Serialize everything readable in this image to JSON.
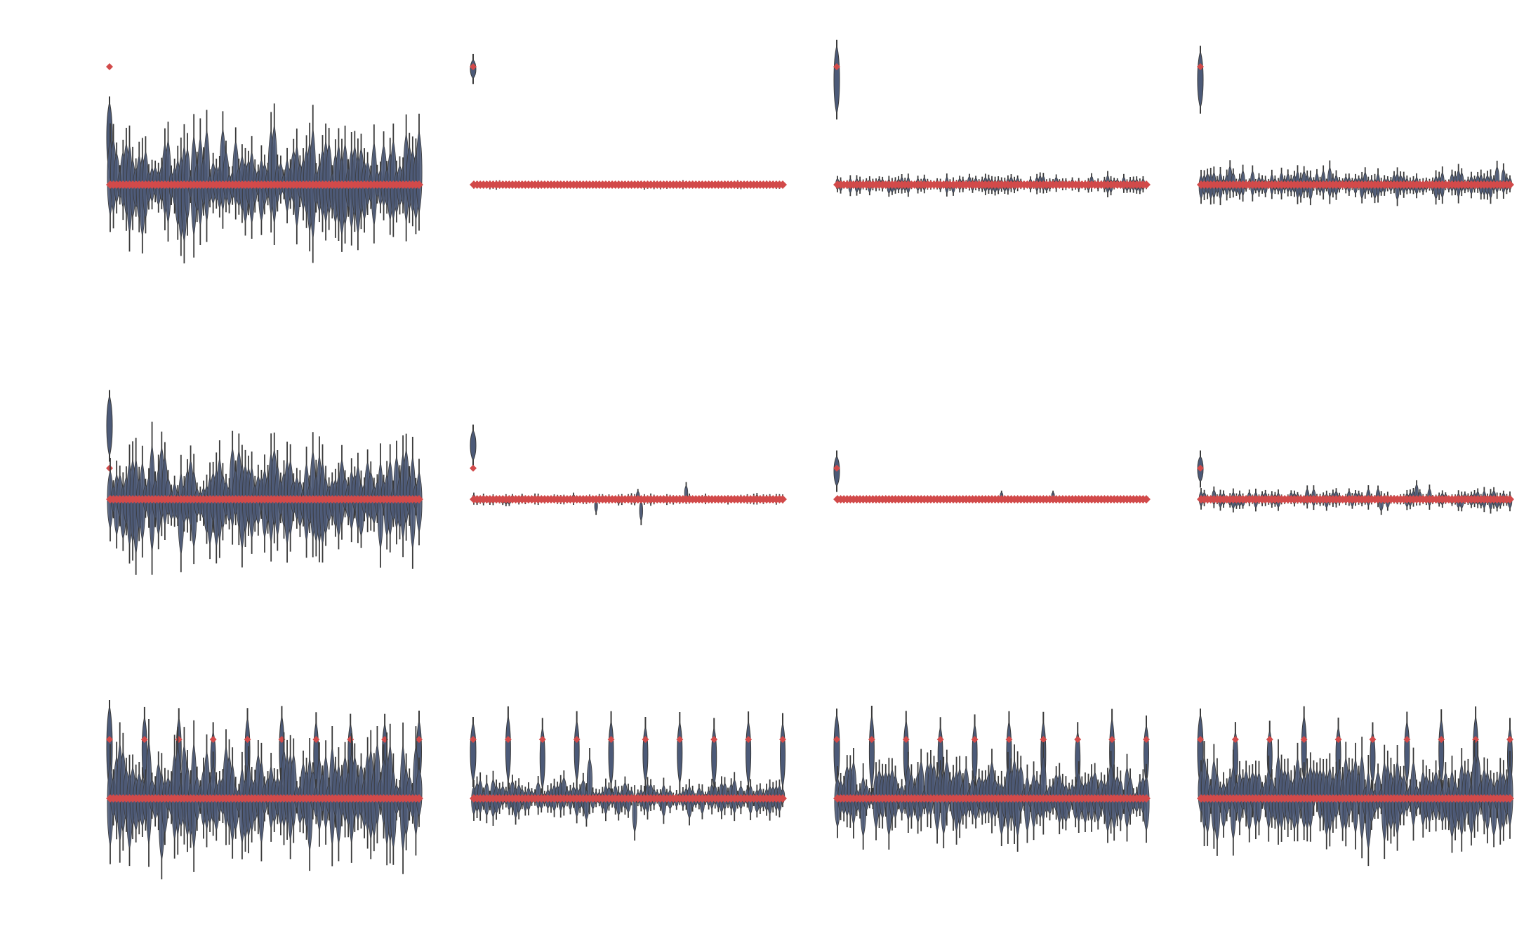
{
  "colors": {
    "violin": "#4c5a78",
    "violin_edge": "#3a3a3a",
    "marker": "#d24a4a"
  },
  "chart_data": [
    {
      "type": "violin",
      "panel": "r1c1",
      "n_positions": 97,
      "amplitude": 0.48,
      "first_marker": 1.0,
      "first_violin": [
        0.1,
        0.7
      ],
      "spikes": [],
      "rise": [],
      "ylim": [
        -1.0,
        1.0
      ]
    },
    {
      "type": "violin",
      "panel": "r1c2",
      "n_positions": 97,
      "amplitude": 0.03,
      "first_marker": 1.0,
      "first_violin": [
        0.9,
        1.06
      ],
      "spikes": [],
      "rise": [],
      "ylim": [
        -1.0,
        1.0
      ]
    },
    {
      "type": "violin",
      "panel": "r1c3",
      "n_positions": 97,
      "amplitude": 0.08,
      "first_marker": 1.0,
      "first_violin": [
        0.6,
        1.18
      ],
      "spikes": [],
      "rise": [],
      "ylim": [
        -1.0,
        1.0
      ]
    },
    {
      "type": "violin",
      "panel": "r1c4",
      "n_positions": 97,
      "amplitude": 0.15,
      "first_marker": 1.0,
      "first_violin": [
        0.65,
        1.13
      ],
      "spikes": [],
      "rise": [],
      "ylim": [
        -1.0,
        1.0
      ]
    },
    {
      "type": "violin",
      "panel": "r2c1",
      "n_positions": 97,
      "amplitude": 0.65,
      "first_marker": 0.36,
      "first_violin": [
        0.5,
        1.2
      ],
      "spikes": [],
      "rise": [],
      "ylim": [
        -1.0,
        1.0
      ]
    },
    {
      "type": "violin",
      "panel": "r2c2",
      "n_positions": 97,
      "amplitude": 0.06,
      "first_marker": 0.36,
      "first_violin": [
        0.45,
        0.8
      ],
      "spikes": [
        {
          "pos": 38,
          "y": -0.18
        },
        {
          "pos": 52,
          "y": -0.3
        },
        {
          "pos": 66,
          "y": 0.2
        },
        {
          "pos": 51,
          "y": 0.12
        }
      ],
      "rise": [],
      "ylim": [
        -1.0,
        1.0
      ]
    },
    {
      "type": "violin",
      "panel": "r2c3",
      "n_positions": 97,
      "amplitude": 0.03,
      "first_marker": 0.36,
      "first_violin": [
        0.15,
        0.5
      ],
      "spikes": [
        {
          "pos": 51,
          "y": 0.1
        },
        {
          "pos": 67,
          "y": 0.1
        }
      ],
      "rise": [],
      "ylim": [
        -1.0,
        1.0
      ]
    },
    {
      "type": "violin",
      "panel": "r2c4",
      "n_positions": 97,
      "amplitude": 0.12,
      "first_marker": 0.36,
      "first_violin": [
        0.2,
        0.5
      ],
      "spikes": [
        {
          "pos": 67,
          "y": 0.22
        },
        {
          "pos": 56,
          "y": -0.18
        }
      ],
      "rise": [],
      "ylim": [
        -1.0,
        1.0
      ]
    },
    {
      "type": "violin",
      "panel": "r3c1",
      "n_positions": 97,
      "amplitude": 0.72,
      "first_marker": 0.7,
      "first_violin": [
        0.1,
        1.1
      ],
      "spikes": [],
      "rise": [],
      "ylim": [
        -1.0,
        1.0
      ]
    },
    {
      "type": "violin",
      "panel": "r3c2",
      "n_positions": 97,
      "amplitude": 0.25,
      "first_marker": 0.7,
      "first_violin": [
        0.2,
        0.9
      ],
      "spikes": [
        {
          "pos": 36,
          "y": 0.6
        },
        {
          "pos": 50,
          "y": -0.5
        }
      ],
      "rise": [],
      "ylim": [
        -1.0,
        1.0
      ]
    },
    {
      "type": "violin",
      "panel": "r3c3",
      "n_positions": 97,
      "amplitude": 0.45,
      "first_marker": 0.7,
      "first_violin": [
        0.15,
        1.0
      ],
      "spikes": [],
      "rise": [
        {
          "from": 28,
          "to": 40,
          "y": 0.55
        }
      ],
      "ylim": [
        -1.0,
        1.0
      ]
    },
    {
      "type": "violin",
      "panel": "r3c4",
      "n_positions": 97,
      "amplitude": 0.55,
      "first_marker": 0.7,
      "first_violin": [
        0.15,
        1.0
      ],
      "spikes": [],
      "rise": [
        {
          "from": 30,
          "to": 50,
          "y": 0.55
        }
      ],
      "ylim": [
        -1.0,
        1.0
      ]
    }
  ]
}
